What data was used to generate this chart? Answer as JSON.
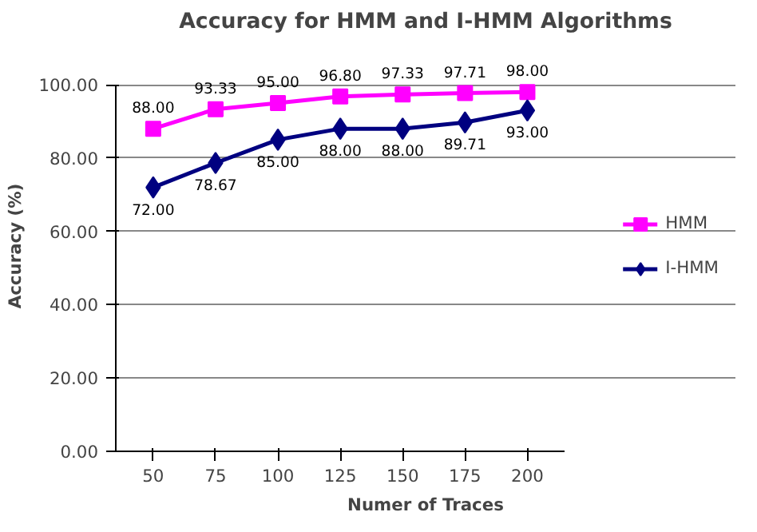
{
  "chart_data": {
    "type": "line",
    "title": "Accuracy for HMM and I-HMM Algorithms",
    "xlabel": "Numer of Traces",
    "ylabel": "Accuracy (%)",
    "categories": [
      "50",
      "75",
      "100",
      "125",
      "150",
      "175",
      "200"
    ],
    "ylim": [
      0,
      100
    ],
    "yticks": [
      {
        "value": 0,
        "label": "0.00"
      },
      {
        "value": 20,
        "label": "20.00"
      },
      {
        "value": 40,
        "label": "40.00"
      },
      {
        "value": 60,
        "label": "60.00"
      },
      {
        "value": 80,
        "label": "80.00"
      },
      {
        "value": 100,
        "label": "100.00"
      }
    ],
    "grid": "y",
    "legend": "right",
    "line_style": "solid",
    "series": [
      {
        "name": "HMM",
        "color": "#ff00ff",
        "marker": "square",
        "values": [
          88.0,
          93.33,
          95.0,
          96.8,
          97.33,
          97.71,
          98.0
        ],
        "value_labels": [
          "88.00",
          "93.33",
          "95.00",
          "96.80",
          "97.33",
          "97.71",
          "98.00"
        ]
      },
      {
        "name": "I-HMM",
        "color": "#000080",
        "marker": "diamond",
        "values": [
          72.0,
          78.67,
          85.0,
          88.0,
          88.0,
          89.71,
          93.0
        ],
        "value_labels": [
          "72.00",
          "78.67",
          "85.00",
          "88.00",
          "88.00",
          "89.71",
          "93.00"
        ]
      }
    ]
  }
}
